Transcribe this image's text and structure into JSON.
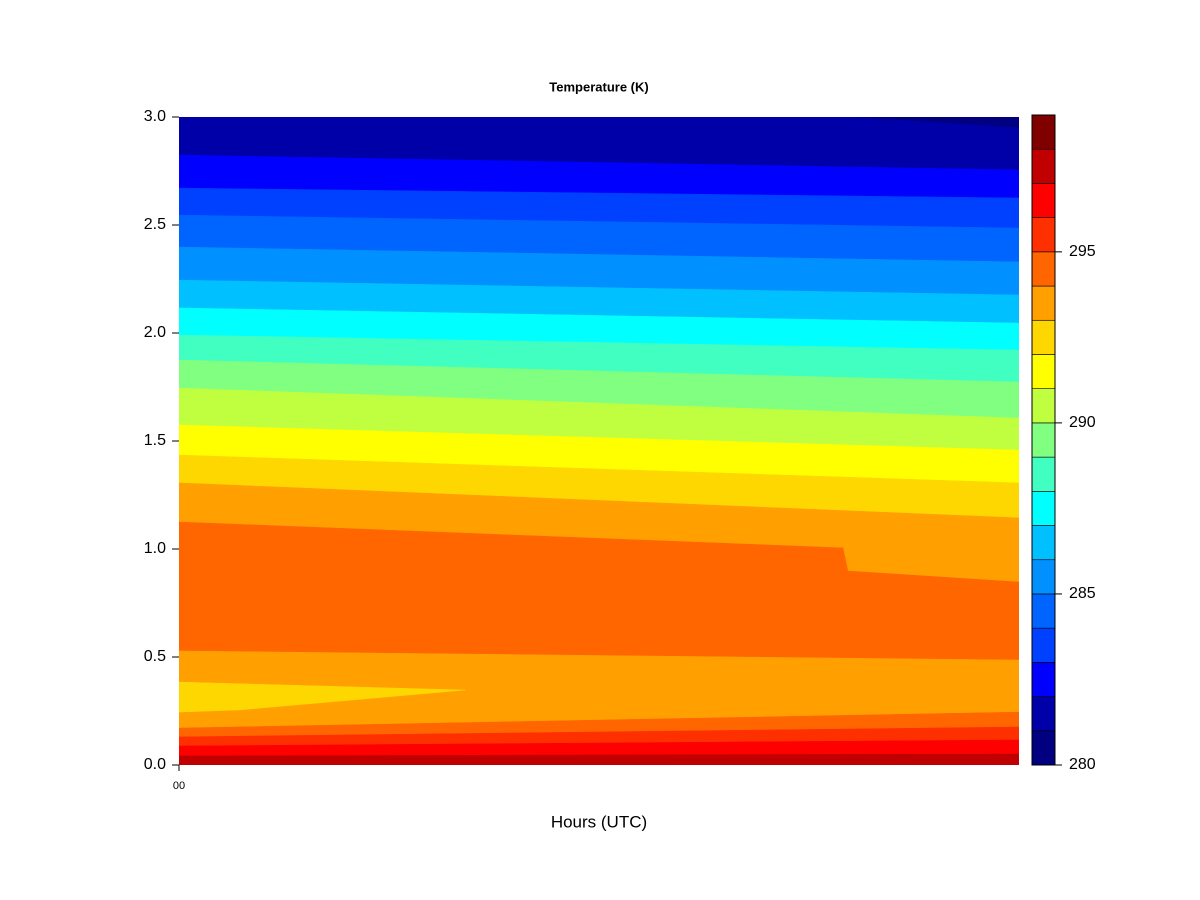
{
  "chart_data": {
    "type": "contour",
    "title": "Temperature (K)",
    "x_label": "Hours (UTC)",
    "xlim": [
      0,
      24
    ],
    "xticks": [
      {
        "value": 0,
        "label": "00"
      }
    ],
    "ylim": [
      0,
      3
    ],
    "yticks": [
      {
        "value": 0,
        "label": "0.0"
      },
      0.5,
      {
        "value": 1,
        "label": "1.0"
      },
      1.5,
      {
        "value": 2,
        "label": "2.0"
      },
      2.5,
      {
        "value": 3,
        "label": "3.0"
      }
    ],
    "levels": [
      280,
      281,
      282,
      283,
      284,
      285,
      286,
      287,
      288,
      289,
      290,
      291,
      292,
      293,
      294,
      295,
      296,
      297,
      298,
      299
    ],
    "colors": [
      "#000080",
      "#0000a8",
      "#0000ff",
      "#0040ff",
      "#0064ff",
      "#0090ff",
      "#00c0ff",
      "#00ffff",
      "#40ffc0",
      "#80ff80",
      "#c0ff40",
      "#ffff00",
      "#ffd700",
      "#ffa000",
      "#ff6600",
      "#ff3000",
      "#ff0000",
      "#c00000",
      "#800000"
    ],
    "colorbar_ticks": [
      280,
      285,
      290,
      295
    ],
    "regions": [
      {
        "level": 280,
        "points": [
          [
            0,
            3
          ],
          [
            24,
            3
          ],
          [
            24,
            0
          ],
          [
            0,
            0
          ]
        ]
      },
      {
        "level": 281,
        "points": [
          [
            0,
            3
          ],
          [
            19.17,
            3
          ],
          [
            24,
            2.95
          ],
          [
            24,
            0
          ],
          [
            0,
            0
          ]
        ]
      },
      {
        "level": 282,
        "points": [
          [
            0,
            2.824
          ],
          [
            24,
            2.755
          ],
          [
            24,
            0
          ],
          [
            0,
            0
          ]
        ]
      },
      {
        "level": 283,
        "points": [
          [
            0,
            2.671
          ],
          [
            24,
            2.625
          ],
          [
            24,
            0
          ],
          [
            0,
            0
          ]
        ]
      },
      {
        "level": 284,
        "points": [
          [
            0,
            2.546
          ],
          [
            24,
            2.486
          ],
          [
            24,
            0
          ],
          [
            0,
            0
          ]
        ]
      },
      {
        "level": 285,
        "points": [
          [
            0,
            2.398
          ],
          [
            24,
            2.329
          ],
          [
            24,
            0
          ],
          [
            0,
            0
          ]
        ]
      },
      {
        "level": 286,
        "points": [
          [
            0,
            2.245
          ],
          [
            24,
            2.176
          ],
          [
            24,
            0
          ],
          [
            0,
            0
          ]
        ]
      },
      {
        "level": 287,
        "points": [
          [
            0,
            2.116
          ],
          [
            24,
            2.046
          ],
          [
            24,
            0
          ],
          [
            0,
            0
          ]
        ]
      },
      {
        "level": 288,
        "points": [
          [
            0,
            1.991
          ],
          [
            24,
            1.921
          ],
          [
            24,
            0
          ],
          [
            0,
            0
          ]
        ]
      },
      {
        "level": 289,
        "points": [
          [
            0,
            1.875
          ],
          [
            24,
            1.773
          ],
          [
            24,
            0
          ],
          [
            0,
            0
          ]
        ]
      },
      {
        "level": 290,
        "points": [
          [
            0,
            1.745
          ],
          [
            24,
            1.606
          ],
          [
            24,
            0
          ],
          [
            0,
            0
          ]
        ]
      },
      {
        "level": 291,
        "points": [
          [
            0,
            1.574
          ],
          [
            24,
            1.458
          ],
          [
            24,
            0
          ],
          [
            0,
            0
          ]
        ]
      },
      {
        "level": 292,
        "points": [
          [
            0,
            1.435
          ],
          [
            24,
            1.306
          ],
          [
            24,
            0
          ],
          [
            0,
            0
          ]
        ]
      },
      {
        "level": 293,
        "points": [
          [
            0,
            1.306
          ],
          [
            24,
            1.144
          ],
          [
            24,
            0
          ],
          [
            0,
            0
          ]
        ]
      },
      {
        "level": 294,
        "points": [
          [
            0,
            1.125
          ],
          [
            18.97,
            1.005
          ],
          [
            19.11,
            0.898
          ],
          [
            24,
            0.847
          ],
          [
            24,
            0
          ],
          [
            0,
            0
          ]
        ]
      },
      {
        "level": 293,
        "points": [
          [
            0,
            0.528
          ],
          [
            24,
            0.486
          ],
          [
            24,
            0
          ],
          [
            0,
            0
          ]
        ]
      },
      {
        "level": 292,
        "points": [
          [
            0,
            0.384
          ],
          [
            8.17,
            0.347
          ],
          [
            1.74,
            0.255
          ],
          [
            0,
            0.245
          ]
        ]
      },
      {
        "level": 294,
        "points": [
          [
            0,
            0.171
          ],
          [
            24,
            0.245
          ],
          [
            24,
            0
          ],
          [
            0,
            0
          ]
        ]
      },
      {
        "level": 295,
        "points": [
          [
            0,
            0.13
          ],
          [
            24,
            0.176
          ],
          [
            24,
            0
          ],
          [
            0,
            0
          ]
        ]
      },
      {
        "level": 296,
        "points": [
          [
            0,
            0.088
          ],
          [
            24,
            0.116
          ],
          [
            24,
            0
          ],
          [
            0,
            0
          ]
        ]
      },
      {
        "level": 297,
        "points": [
          [
            0,
            0.042
          ],
          [
            24,
            0.051
          ],
          [
            24,
            0
          ],
          [
            0,
            0
          ]
        ]
      }
    ]
  }
}
